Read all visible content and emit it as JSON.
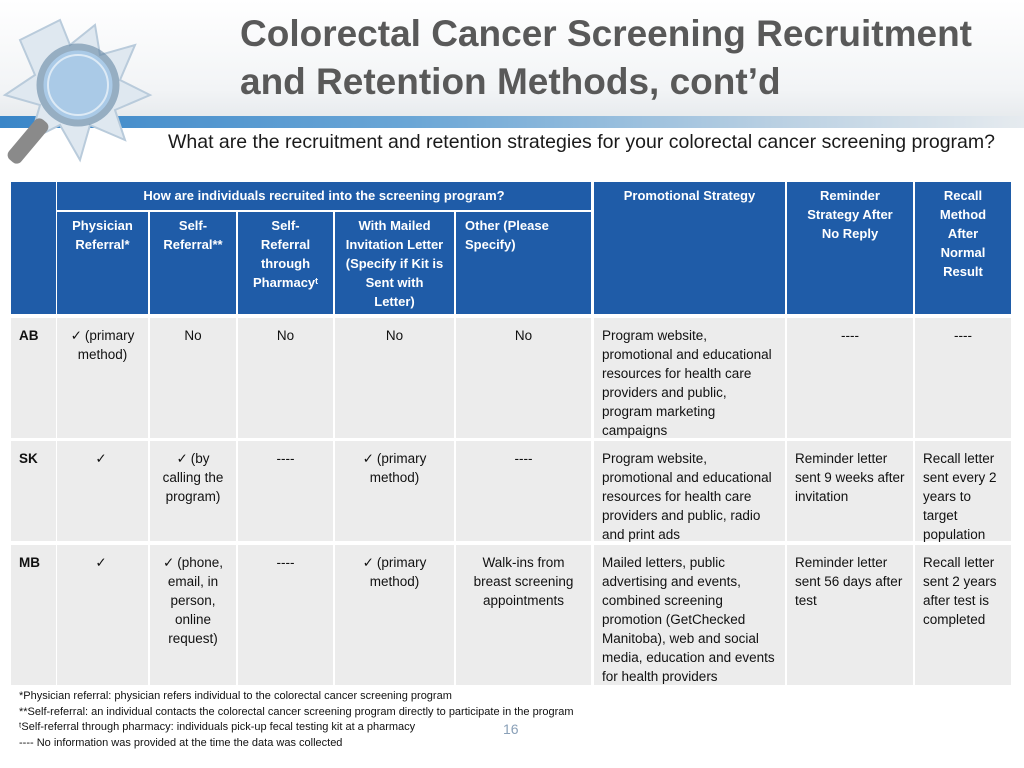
{
  "slide": {
    "title": "Colorectal Cancer Screening Recruitment and Retention Methods, cont’d",
    "question": "What are the recruitment and retention strategies for your colorectal cancer screening program?",
    "page_number": "16"
  },
  "colors": {
    "header_blue": "#1f5ca8",
    "body_gray": "#ececec",
    "title_gray": "#595959"
  },
  "table": {
    "group_header": "How are individuals recruited into the screening program?",
    "headers": {
      "physician": "Physician Referral*",
      "self_referral": "Self-Referral**",
      "pharmacy": "Self-Referral through Pharmacyᵗ",
      "mailed": "With Mailed Invitation Letter (Specify if Kit is Sent with Letter)",
      "other": "Other (Please Specify)",
      "promotional": "Promotional Strategy",
      "reminder": "Reminder Strategy After No Reply",
      "recall": "Recall Method After Normal Result"
    },
    "check_symbol": "✓",
    "rows": [
      {
        "province": "AB",
        "physician": "(primary method)",
        "self_referral": "No",
        "pharmacy": "No",
        "mailed": "No",
        "other": "No",
        "promotional": "Program website, promotional and educational resources for health care providers and public, program marketing campaigns",
        "reminder": "----",
        "recall": "----"
      },
      {
        "province": "SK",
        "physician": "",
        "self_referral": "(by calling the program)",
        "pharmacy": "----",
        "mailed": "(primary method)",
        "other": "----",
        "promotional": "Program website, promotional and educational resources for health care providers and public, radio and print ads",
        "reminder": "Reminder letter sent 9 weeks after invitation",
        "recall": "Recall letter sent every 2 years to target population"
      },
      {
        "province": "MB",
        "physician": "",
        "self_referral": "(phone, email, in person, online request)",
        "pharmacy": "----",
        "mailed": "(primary method)",
        "other": "Walk-ins from breast screening appointments",
        "promotional": "Mailed letters, public advertising and events, combined screening promotion (GetChecked Manitoba), web and social media, education and events for health providers",
        "reminder": "Reminder letter sent 56 days after test",
        "recall": "Recall letter sent 2 years after test is completed"
      }
    ]
  },
  "footnotes": [
    "*Physician referral: physician refers individual to the colorectal cancer screening program",
    "**Self-referral: an individual contacts the colorectal cancer screening program directly to participate in the program",
    "ᵗSelf-referral through pharmacy: individuals pick-up fecal testing kit at a pharmacy",
    "---- No information was provided at the time the data was collected"
  ]
}
